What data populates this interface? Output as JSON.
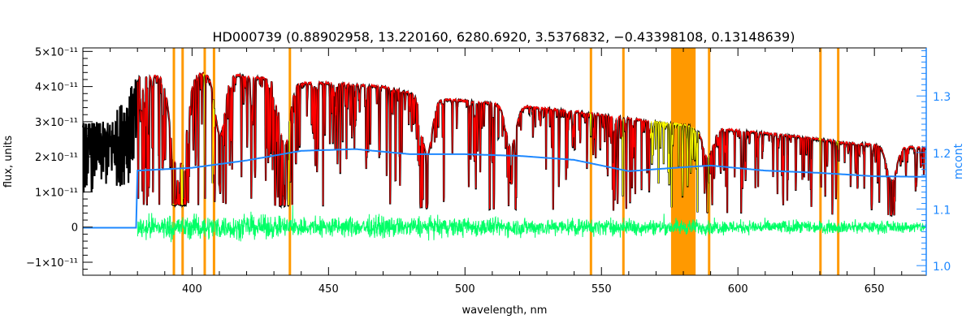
{
  "chart_data": {
    "type": "line",
    "title": "HD000739    (0.88902958, 13.220160, 6280.6920, 3.5376832, −0.43398108, 0.13148639)",
    "xlabel": "wavelength, nm",
    "ylabel": "flux, units",
    "y2label": "mcont",
    "xlim": [
      360,
      669
    ],
    "ylim": [
      -1.37e-11,
      5.1e-11
    ],
    "y2lim": [
      0.983,
      1.385
    ],
    "x_ticks": [
      "400",
      "450",
      "500",
      "550",
      "600",
      "650"
    ],
    "x_tick_values": [
      400,
      450,
      500,
      550,
      600,
      650
    ],
    "y_ticks": [
      "−1×10⁻¹¹",
      "0",
      "1×10⁻¹¹",
      "2×10⁻¹¹",
      "3×10⁻¹¹",
      "4×10⁻¹¹",
      "5×10⁻¹¹"
    ],
    "y_tick_values": [
      -1e-11,
      0,
      1e-11,
      2e-11,
      3e-11,
      4e-11,
      5e-11
    ],
    "y2_ticks": [
      "1.0",
      "1.1",
      "1.2",
      "1.3"
    ],
    "y2_tick_values": [
      1.0,
      1.1,
      1.2,
      1.3
    ],
    "grid": false,
    "series": [
      {
        "role": "observed flux (black)",
        "color": "#000000",
        "continuum_wavelength": [
          360,
          370,
          375,
          380,
          390,
          410,
          420,
          430,
          440,
          450,
          470,
          490,
          500,
          520,
          540,
          560,
          580,
          600,
          620,
          640,
          669
        ],
        "continuum_flux": [
          3e-11,
          3e-11,
          3.7e-11,
          4.3e-11,
          4.3e-11,
          4.4e-11,
          4.3e-11,
          4.2e-11,
          4.1e-11,
          4.1e-11,
          4e-11,
          3.65e-11,
          3.6e-11,
          3.45e-11,
          3.3e-11,
          3.1e-11,
          2.9e-11,
          2.75e-11,
          2.6e-11,
          2.4e-11,
          2.25e-11
        ]
      },
      {
        "role": "model flux (red, yellow in masked regions)",
        "color": "#ff0000",
        "masked_color": "#ffff00",
        "start_wavelength": 380,
        "strong_lines": [
          {
            "wavelength": 393.4,
            "min_flux": 7e-12
          },
          {
            "wavelength": 396.8,
            "min_flux": 8e-12
          },
          {
            "wavelength": 410.2,
            "min_flux": 1.2e-11
          },
          {
            "wavelength": 434.0,
            "min_flux": 8e-12
          },
          {
            "wavelength": 486.1,
            "min_flux": 7e-12
          },
          {
            "wavelength": 516.8,
            "min_flux": 1.3e-11
          },
          {
            "wavelength": 589.0,
            "min_flux": 1.3e-11
          },
          {
            "wavelength": 656.3,
            "min_flux": 5e-12
          }
        ]
      },
      {
        "role": "residual (green)",
        "color": "#00ff66",
        "start_wavelength": 380,
        "typical_amplitude": 2e-12,
        "max_amplitude": 9e-12
      },
      {
        "role": "mcont (blue, right axis)",
        "color": "#1e88ff",
        "wavelength": [
          360,
          379.9,
          380,
          400,
          420,
          440,
          460,
          480,
          500,
          520,
          540,
          560,
          580,
          590,
          610,
          630,
          650,
          669
        ],
        "values": [
          1.067,
          1.067,
          1.168,
          1.173,
          1.186,
          1.203,
          1.206,
          1.197,
          1.197,
          1.194,
          1.187,
          1.167,
          1.174,
          1.177,
          1.168,
          1.164,
          1.158,
          1.157
        ]
      }
    ],
    "masked_regions": {
      "color": "#ff9900",
      "ranges": [
        [
          392.9,
          393.6
        ],
        [
          396.1,
          396.8
        ],
        [
          404.2,
          404.9
        ],
        [
          407.6,
          408.3
        ],
        [
          435.4,
          436.1
        ],
        [
          545.7,
          546.4
        ],
        [
          557.6,
          558.3
        ],
        [
          575.5,
          584.5
        ],
        [
          589.0,
          589.7
        ],
        [
          629.8,
          630.5
        ],
        [
          636.3,
          637.0
        ]
      ]
    }
  }
}
